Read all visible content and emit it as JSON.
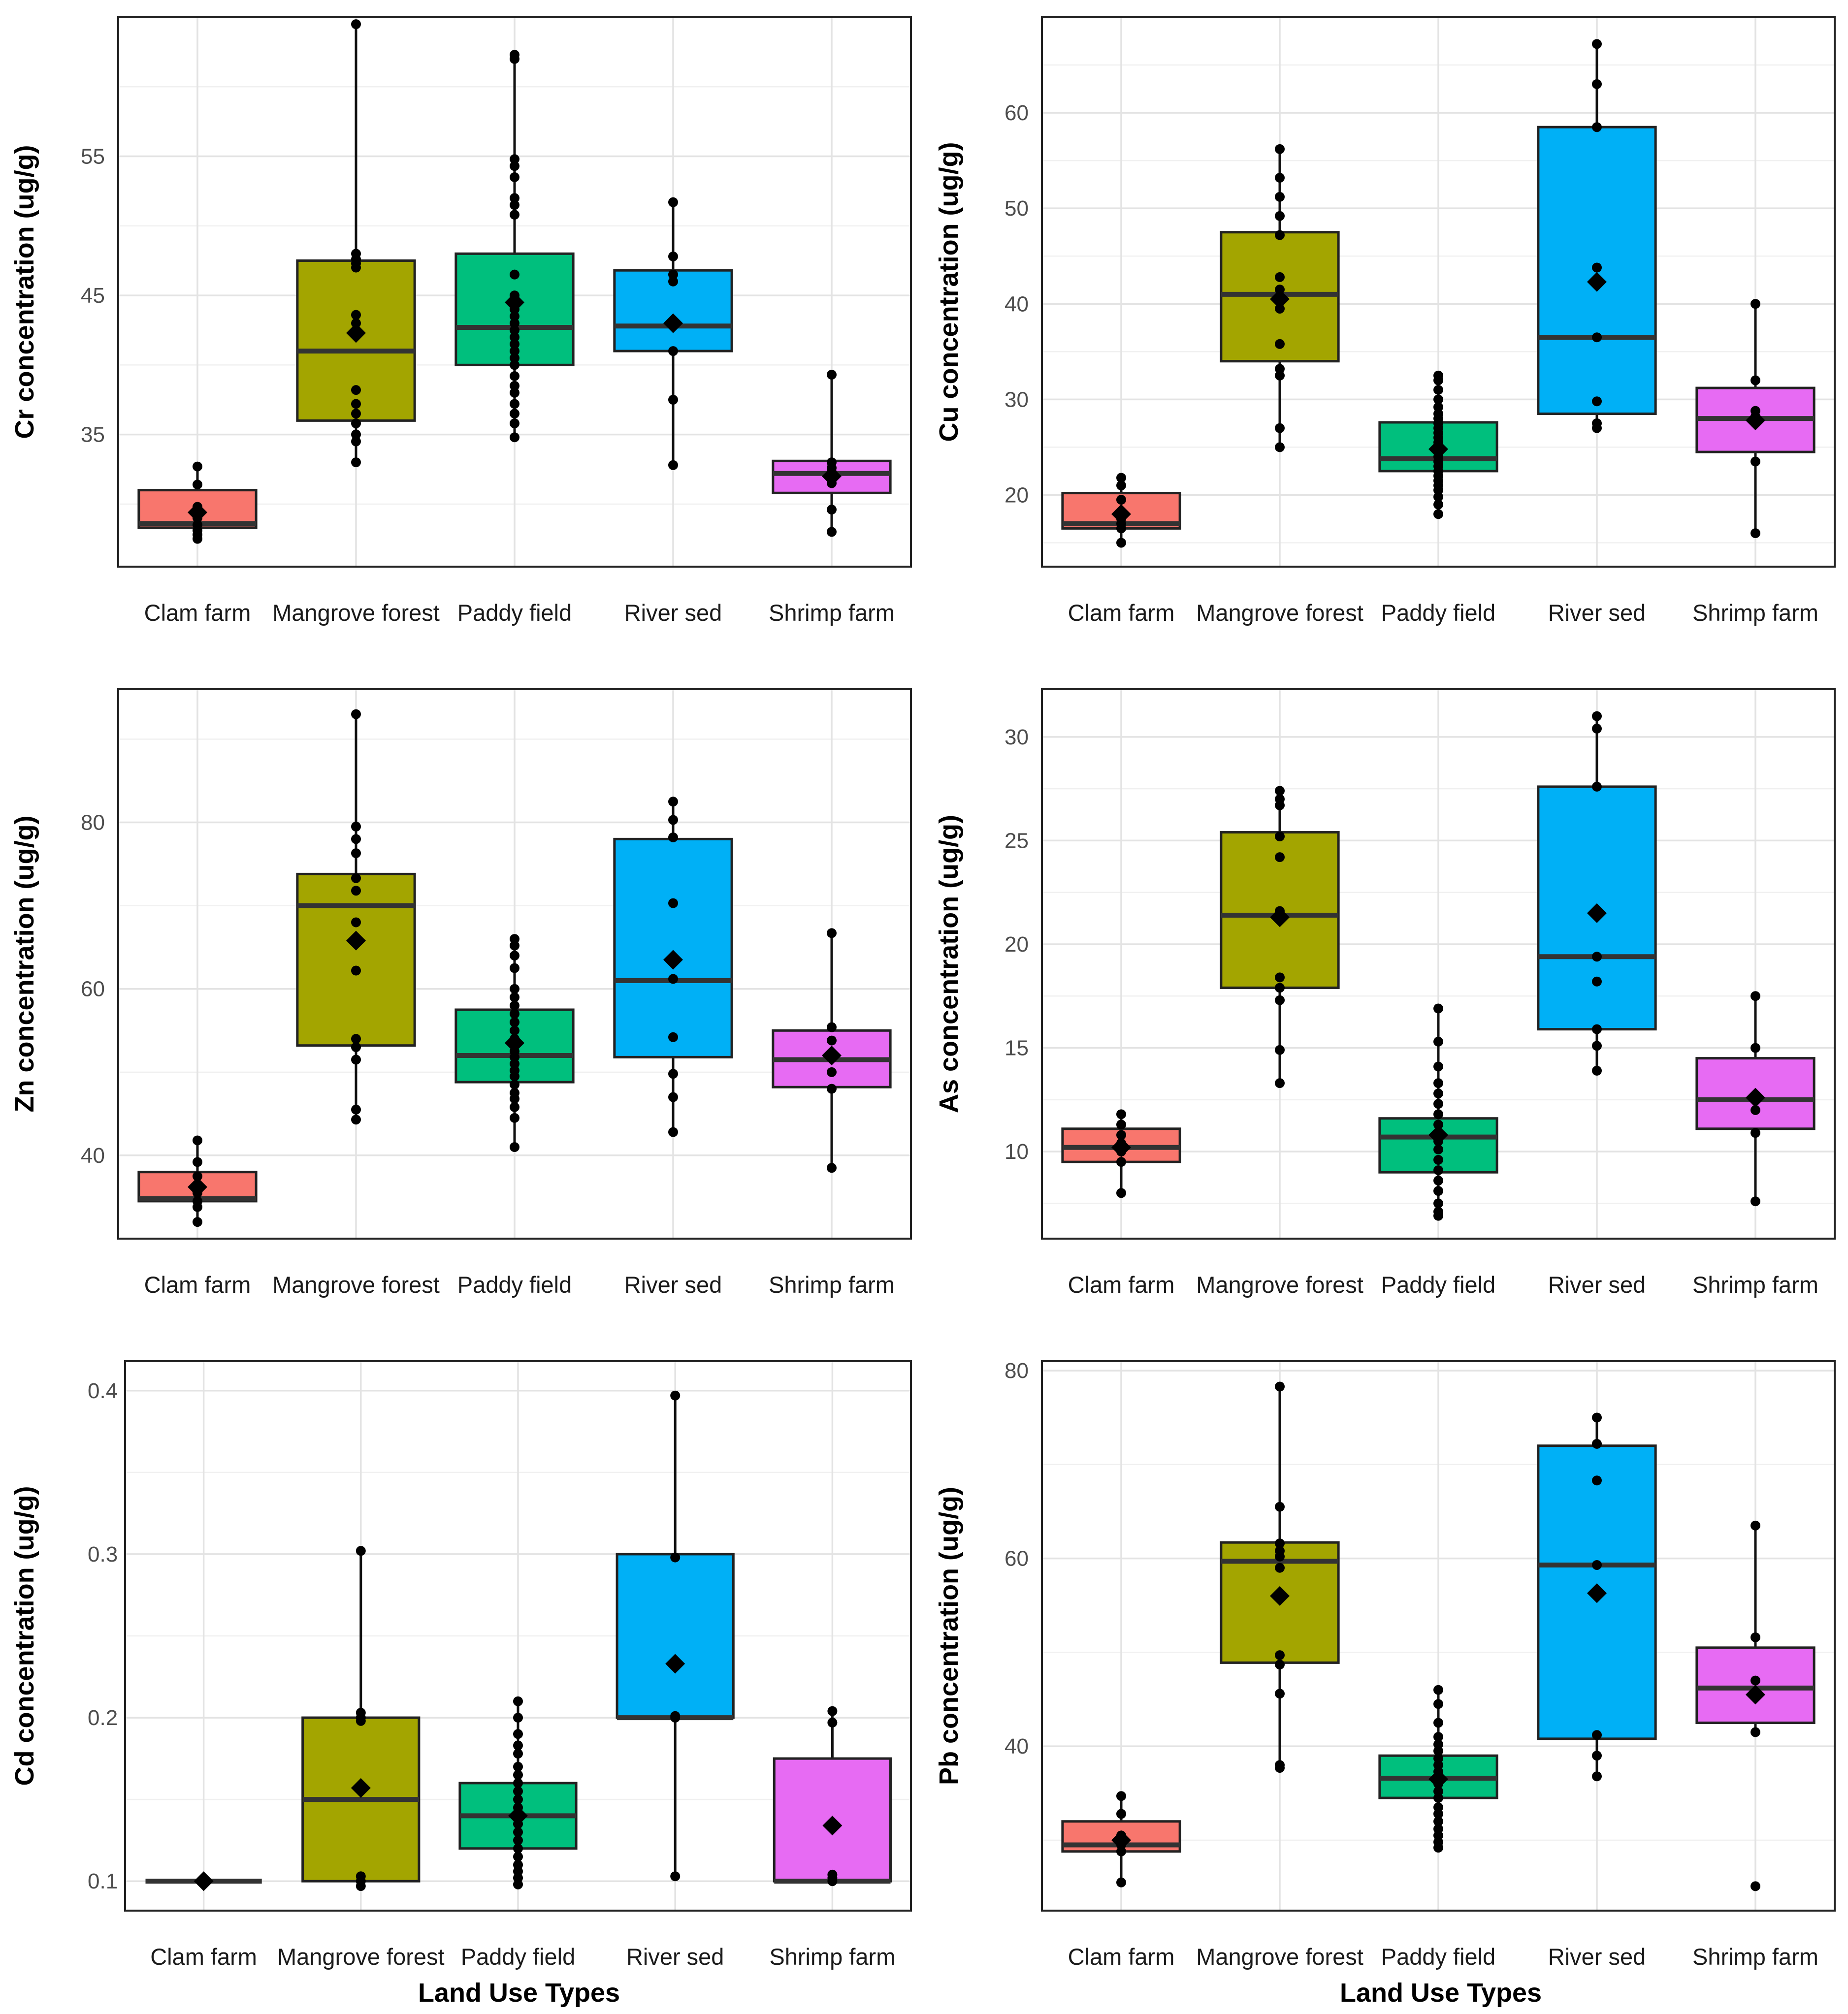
{
  "figure": {
    "xlabel": "Land Use Types"
  },
  "colors": {
    "Clam farm": "#F8766D",
    "Mangrove forest": "#A3A500",
    "Paddy field": "#00BF7D",
    "River sed": "#00B0F6",
    "Shrimp farm": "#E76BF3"
  },
  "chart_data": [
    {
      "type": "box",
      "ylabel": "Cr concentration (ug/g)",
      "ylim": [
        25.5,
        65
      ],
      "yticks": [
        35,
        45,
        55
      ],
      "categories": [
        "Clam farm",
        "Mangrove forest",
        "Paddy field",
        "River sed",
        "Shrimp farm"
      ],
      "boxes": [
        {
          "q1": 28.3,
          "median": 28.6,
          "q3": 31.0,
          "wlo": 27.5,
          "whi": 32.7,
          "mean": 29.4,
          "points": [
            27.5,
            27.8,
            28.1,
            28.5,
            29.0,
            29.8,
            31.4,
            32.7
          ]
        },
        {
          "q1": 36.0,
          "median": 41.0,
          "q3": 47.5,
          "wlo": 33.0,
          "whi": 64.5,
          "mean": 42.3,
          "points": [
            33.0,
            34.5,
            35.0,
            35.8,
            36.5,
            37.2,
            38.2,
            43.0,
            43.6,
            47.0,
            47.3,
            47.6,
            48.0,
            64.5
          ]
        },
        {
          "q1": 40.0,
          "median": 42.7,
          "q3": 48.0,
          "wlo": 34.8,
          "whi": 62.3,
          "mean": 44.5,
          "points": [
            34.8,
            35.8,
            36.5,
            37.2,
            38.0,
            38.5,
            39.2,
            40.0,
            40.5,
            41.0,
            41.5,
            42.0,
            42.5,
            43.0,
            43.5,
            44.0,
            44.5,
            45.0,
            46.5,
            50.8,
            51.5,
            52.0,
            53.5,
            54.3,
            54.8,
            62.0,
            62.3
          ]
        },
        {
          "q1": 41.0,
          "median": 42.8,
          "q3": 46.8,
          "wlo": 32.8,
          "whi": 51.7,
          "mean": 43.0,
          "points": [
            32.8,
            37.5,
            41.0,
            43.0,
            46.0,
            46.5,
            47.8,
            51.7
          ]
        },
        {
          "q1": 30.8,
          "median": 32.2,
          "q3": 33.1,
          "wlo": 28.0,
          "whi": 39.3,
          "mean": 32.0,
          "points": [
            28.0,
            29.6,
            31.5,
            32.0,
            32.3,
            32.6,
            33.0,
            39.3
          ]
        }
      ]
    },
    {
      "type": "box",
      "ylabel": "Cu concentration (ug/g)",
      "ylim": [
        12.5,
        70
      ],
      "yticks": [
        20,
        30,
        40,
        50,
        60
      ],
      "categories": [
        "Clam farm",
        "Mangrove forest",
        "Paddy field",
        "River sed",
        "Shrimp farm"
      ],
      "boxes": [
        {
          "q1": 16.5,
          "median": 17.0,
          "q3": 20.2,
          "wlo": 15.0,
          "whi": 21.8,
          "mean": 18.0,
          "points": [
            15.0,
            16.5,
            17.0,
            17.5,
            18.2,
            19.5,
            21.0,
            21.8
          ]
        },
        {
          "q1": 34.0,
          "median": 41.0,
          "q3": 47.5,
          "wlo": 25.0,
          "whi": 56.2,
          "mean": 40.5,
          "points": [
            25.0,
            27.0,
            32.5,
            33.2,
            35.8,
            39.5,
            41.5,
            42.8,
            47.2,
            49.2,
            51.2,
            53.2,
            56.2
          ]
        },
        {
          "q1": 22.5,
          "median": 23.8,
          "q3": 27.6,
          "wlo": 18.0,
          "whi": 32.5,
          "mean": 24.8,
          "points": [
            18.0,
            19.0,
            19.8,
            20.5,
            21.0,
            21.5,
            22.0,
            22.5,
            23.0,
            23.5,
            24.0,
            24.5,
            25.0,
            25.5,
            26.0,
            26.5,
            27.0,
            27.5,
            28.0,
            28.5,
            29.2,
            30.0,
            31.0,
            32.0,
            32.5
          ]
        },
        {
          "q1": 28.5,
          "median": 36.5,
          "q3": 58.5,
          "wlo": 27.0,
          "whi": 67.2,
          "mean": 42.3,
          "points": [
            27.0,
            27.5,
            29.8,
            36.5,
            43.8,
            58.5,
            63.0,
            67.2
          ]
        },
        {
          "q1": 24.5,
          "median": 28.0,
          "q3": 31.2,
          "wlo": 16.0,
          "whi": 40.0,
          "mean": 27.8,
          "points": [
            16.0,
            23.5,
            27.5,
            28.2,
            28.8,
            32.0,
            40.0
          ]
        }
      ]
    },
    {
      "type": "box",
      "ylabel": "Zn concentration (ug/g)",
      "ylim": [
        30,
        96
      ],
      "yticks": [
        40,
        60,
        80
      ],
      "categories": [
        "Clam farm",
        "Mangrove forest",
        "Paddy field",
        "River sed",
        "Shrimp farm"
      ],
      "boxes": [
        {
          "q1": 34.5,
          "median": 34.8,
          "q3": 38.0,
          "wlo": 32.0,
          "whi": 41.8,
          "mean": 36.2,
          "points": [
            32.0,
            33.8,
            34.5,
            35.5,
            36.3,
            37.5,
            39.2,
            41.8
          ]
        },
        {
          "q1": 53.2,
          "median": 70.0,
          "q3": 73.8,
          "wlo": 44.3,
          "whi": 93.0,
          "mean": 65.8,
          "points": [
            44.3,
            45.5,
            51.5,
            53.0,
            54.0,
            62.2,
            68.0,
            71.8,
            73.3,
            76.3,
            78.0,
            79.5,
            93.0
          ]
        },
        {
          "q1": 48.8,
          "median": 52.0,
          "q3": 57.5,
          "wlo": 41.0,
          "whi": 66.0,
          "mean": 53.5,
          "points": [
            41.0,
            44.5,
            45.8,
            46.8,
            47.5,
            48.5,
            49.5,
            50.2,
            51.0,
            51.8,
            52.5,
            53.2,
            54.0,
            55.0,
            56.0,
            57.0,
            58.0,
            59.0,
            60.0,
            62.5,
            64.0,
            65.2,
            66.0
          ]
        },
        {
          "q1": 51.8,
          "median": 61.0,
          "q3": 78.0,
          "wlo": 42.8,
          "whi": 82.5,
          "mean": 63.5,
          "points": [
            42.8,
            47.0,
            49.8,
            54.2,
            61.2,
            70.3,
            78.2,
            80.3,
            82.5
          ]
        },
        {
          "q1": 48.2,
          "median": 51.5,
          "q3": 55.0,
          "wlo": 38.5,
          "whi": 66.7,
          "mean": 52.0,
          "points": [
            38.5,
            48.0,
            50.0,
            51.8,
            53.8,
            55.4,
            66.7
          ]
        }
      ]
    },
    {
      "type": "box",
      "ylabel": "As concentration (ug/g)",
      "ylim": [
        5.8,
        32.3
      ],
      "yticks": [
        10,
        15,
        20,
        25,
        30
      ],
      "categories": [
        "Clam farm",
        "Mangrove forest",
        "Paddy field",
        "River sed",
        "Shrimp farm"
      ],
      "boxes": [
        {
          "q1": 9.5,
          "median": 10.2,
          "q3": 11.1,
          "wlo": 8.0,
          "whi": 11.8,
          "mean": 10.2,
          "points": [
            8.0,
            9.5,
            10.0,
            10.4,
            10.8,
            11.3,
            11.8
          ]
        },
        {
          "q1": 17.9,
          "median": 21.4,
          "q3": 25.4,
          "wlo": 13.3,
          "whi": 27.4,
          "mean": 21.3,
          "points": [
            13.3,
            14.9,
            17.3,
            17.9,
            18.4,
            21.3,
            21.6,
            24.2,
            25.2,
            26.7,
            27.0,
            27.4
          ]
        },
        {
          "q1": 9.0,
          "median": 10.7,
          "q3": 11.6,
          "wlo": 6.9,
          "whi": 16.9,
          "mean": 10.8,
          "points": [
            6.9,
            7.1,
            7.5,
            8.1,
            8.6,
            9.1,
            9.6,
            10.1,
            10.5,
            10.9,
            11.3,
            11.8,
            12.3,
            12.8,
            13.3,
            14.1,
            15.3,
            16.9
          ]
        },
        {
          "q1": 15.9,
          "median": 19.4,
          "q3": 27.6,
          "wlo": 13.9,
          "whi": 31.0,
          "mean": 21.5,
          "points": [
            13.9,
            15.1,
            15.9,
            18.2,
            19.4,
            27.6,
            30.4,
            31.0
          ]
        },
        {
          "q1": 11.1,
          "median": 12.5,
          "q3": 14.5,
          "wlo": 7.6,
          "whi": 17.5,
          "mean": 12.6,
          "points": [
            7.6,
            10.9,
            12.0,
            12.6,
            15.0,
            17.5
          ]
        }
      ]
    },
    {
      "type": "box",
      "ylabel": "Cd concentration (ug/g)",
      "ylim": [
        0.082,
        0.418
      ],
      "yticks": [
        0.1,
        0.2,
        0.3,
        0.4
      ],
      "categories": [
        "Clam farm",
        "Mangrove forest",
        "Paddy field",
        "River sed",
        "Shrimp farm"
      ],
      "boxes": [
        {
          "q1": 0.1,
          "median": 0.1,
          "q3": 0.1,
          "wlo": 0.1,
          "whi": 0.1,
          "mean": 0.1,
          "points": [
            0.1,
            0.1,
            0.1
          ]
        },
        {
          "q1": 0.1,
          "median": 0.15,
          "q3": 0.2,
          "wlo": 0.097,
          "whi": 0.302,
          "mean": 0.157,
          "points": [
            0.097,
            0.1,
            0.103,
            0.198,
            0.2,
            0.203,
            0.302
          ]
        },
        {
          "q1": 0.12,
          "median": 0.14,
          "q3": 0.16,
          "wlo": 0.098,
          "whi": 0.21,
          "mean": 0.14,
          "points": [
            0.098,
            0.102,
            0.106,
            0.11,
            0.115,
            0.12,
            0.125,
            0.13,
            0.135,
            0.14,
            0.145,
            0.15,
            0.155,
            0.16,
            0.165,
            0.17,
            0.178,
            0.183,
            0.19,
            0.2,
            0.21
          ]
        },
        {
          "q1": 0.2,
          "median": 0.2,
          "q3": 0.3,
          "wlo": 0.103,
          "whi": 0.397,
          "mean": 0.233,
          "points": [
            0.103,
            0.2,
            0.201,
            0.298,
            0.397
          ]
        },
        {
          "q1": 0.1,
          "median": 0.1,
          "q3": 0.175,
          "wlo": 0.1,
          "whi": 0.204,
          "mean": 0.134,
          "points": [
            0.1,
            0.102,
            0.104,
            0.197,
            0.204
          ]
        }
      ]
    },
    {
      "type": "box",
      "ylabel": "Pb concentration (ug/g)",
      "ylim": [
        22.5,
        81
      ],
      "yticks": [
        40,
        60,
        80
      ],
      "categories": [
        "Clam farm",
        "Mangrove forest",
        "Paddy field",
        "River sed",
        "Shrimp farm"
      ],
      "boxes": [
        {
          "q1": 28.8,
          "median": 29.5,
          "q3": 32.0,
          "wlo": 25.5,
          "whi": 34.7,
          "mean": 30.0,
          "points": [
            25.5,
            28.8,
            29.5,
            30.5,
            32.8,
            34.7
          ]
        },
        {
          "q1": 48.9,
          "median": 59.7,
          "q3": 61.7,
          "wlo": 37.7,
          "whi": 78.3,
          "mean": 56.0,
          "points": [
            37.7,
            38.0,
            45.6,
            48.7,
            49.7,
            56.0,
            59.0,
            60.2,
            60.8,
            61.6,
            65.5,
            78.3
          ]
        },
        {
          "q1": 34.5,
          "median": 36.6,
          "q3": 39.0,
          "wlo": 29.2,
          "whi": 46.0,
          "mean": 36.5,
          "points": [
            29.2,
            29.8,
            30.5,
            31.2,
            32.0,
            32.8,
            33.5,
            34.5,
            35.2,
            36.0,
            36.6,
            37.3,
            38.0,
            38.7,
            39.5,
            40.2,
            41.0,
            42.5,
            44.5,
            46.0
          ]
        },
        {
          "q1": 40.8,
          "median": 59.3,
          "q3": 72.0,
          "wlo": 36.8,
          "whi": 75.0,
          "mean": 56.3,
          "points": [
            36.8,
            39.0,
            41.2,
            59.3,
            68.3,
            72.2,
            75.0
          ]
        },
        {
          "q1": 42.5,
          "median": 46.2,
          "q3": 50.5,
          "wlo": 41.5,
          "whi": 63.5,
          "mean": 45.5,
          "points": [
            25.1,
            41.5,
            47.0,
            51.6,
            63.5
          ]
        }
      ]
    }
  ]
}
